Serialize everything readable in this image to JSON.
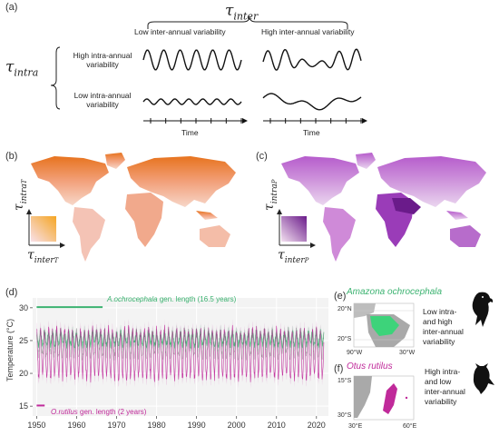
{
  "panel_a": {
    "label": "(a)",
    "tau_inter_symbol": "τ",
    "tau_inter_sub": "inter",
    "tau_intra_symbol": "τ",
    "tau_intra_sub": "intra",
    "col_low": "Low inter-annual variability",
    "col_high": "High inter-annual variability",
    "row_high_1": "High intra-annual",
    "row_high_2": "variability",
    "row_low_1": "Low intra-annual",
    "row_low_2": "variability",
    "time_label": "Time"
  },
  "panel_b": {
    "label": "(b)",
    "y_symbol": "τ",
    "y_sub": "intra",
    "y_subsub": "T",
    "x_symbol": "τ",
    "x_sub": "inter",
    "x_subsub": "T",
    "colors": {
      "low": "#f7d7c9",
      "mid": "#f2a07a",
      "high": "#e7731e",
      "accent": "#f5a623"
    }
  },
  "panel_c": {
    "label": "(c)",
    "y_symbol": "τ",
    "y_sub": "intra",
    "y_subsub": "P",
    "x_symbol": "τ",
    "x_sub": "inter",
    "x_subsub": "P",
    "colors": {
      "low": "#ead6ef",
      "mid": "#c07ad0",
      "high": "#8a2aa8",
      "dark": "#6a1b8a"
    }
  },
  "panel_d": {
    "label": "(d)",
    "chart_data": {
      "type": "line",
      "ylabel": "Temperature (°C)",
      "xlabel": "",
      "xlim": [
        1949,
        2023
      ],
      "ylim": [
        13.5,
        31.5
      ],
      "x_ticks": [
        1950,
        1960,
        1970,
        1980,
        1990,
        2000,
        2010,
        2020
      ],
      "y_ticks": [
        15,
        20,
        25,
        30
      ],
      "series": [
        {
          "name": "Amazona ochrocephala",
          "color": "#3cb371",
          "mean": 25.3,
          "amp": 0.9,
          "noise": 0.6
        },
        {
          "name": "Otus rutilus",
          "color": "#c02a9a",
          "mean": 23.0,
          "amp": 3.6,
          "noise": 0.8
        }
      ],
      "annotations": [
        {
          "species": "A.ochrocephala",
          "text": " gen. length (16.5 years)",
          "color": "#3cb371",
          "from": 1950,
          "to": 1966.5,
          "y": 30.1
        },
        {
          "species": "O.rutilus",
          "text": " gen. length (2 years)",
          "color": "#c02a9a",
          "from": 1950,
          "to": 1952,
          "y": 15.1
        }
      ]
    }
  },
  "panel_e": {
    "label": "(e)",
    "species": "Amazona ochrocephala",
    "species_color": "#3cb371",
    "lat_top": "20°N",
    "lat_bottom": "20°S",
    "lon_left": "90°W",
    "lon_right": "30°W",
    "desc_1": "Low intra-",
    "desc_2": "and high",
    "desc_3": "inter-annual",
    "desc_4": "variability",
    "range_color": "#3dd37a"
  },
  "panel_f": {
    "label": "(f)",
    "species": "Otus rutilus",
    "species_color": "#c02a9a",
    "lat_top": "15°S",
    "lat_bottom": "30°S",
    "lon_left": "30°E",
    "lon_right": "60°E",
    "desc_1": "High intra-",
    "desc_2": "and low",
    "desc_3": "inter-annual",
    "desc_4": "variability",
    "range_color": "#c02a9a"
  }
}
